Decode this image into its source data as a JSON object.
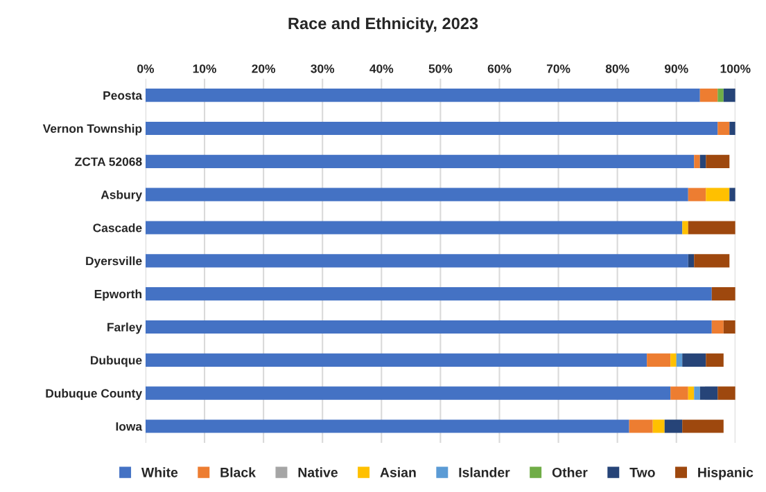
{
  "chart_data": {
    "type": "bar",
    "orientation": "horizontal",
    "stacked": true,
    "title": "Race and Ethnicity, 2023",
    "categories": [
      "Peosta",
      "Vernon Township",
      "ZCTA 52068",
      "Asbury",
      "Cascade",
      "Dyersville",
      "Epworth",
      "Farley",
      "Dubuque",
      "Dubuque County",
      "Iowa"
    ],
    "series": [
      {
        "name": "White",
        "color": "#4472c4",
        "values": [
          94,
          97,
          93,
          92,
          91,
          92,
          96,
          96,
          85,
          89,
          82
        ]
      },
      {
        "name": "Black",
        "color": "#ed7d31",
        "values": [
          3,
          2,
          1,
          3,
          0,
          0,
          0,
          2,
          4,
          3,
          4
        ]
      },
      {
        "name": "Native",
        "color": "#a5a5a5",
        "values": [
          0,
          0,
          0,
          0,
          0,
          0,
          0,
          0,
          0,
          0,
          0
        ]
      },
      {
        "name": "Asian",
        "color": "#ffc000",
        "values": [
          0,
          0,
          0,
          4,
          1,
          0,
          0,
          0,
          1,
          1,
          2
        ]
      },
      {
        "name": "Islander",
        "color": "#5b9bd5",
        "values": [
          0,
          0,
          0,
          0,
          0,
          0,
          0,
          0,
          1,
          1,
          0
        ]
      },
      {
        "name": "Other",
        "color": "#70ad47",
        "values": [
          1,
          0,
          0,
          0,
          0,
          0,
          0,
          0,
          0,
          0,
          0
        ]
      },
      {
        "name": "Two",
        "color": "#264478",
        "values": [
          2,
          1,
          1,
          1,
          0,
          1,
          0,
          0,
          4,
          3,
          3
        ]
      },
      {
        "name": "Hispanic",
        "color": "#9e480e",
        "values": [
          0,
          0,
          4,
          0,
          8,
          6,
          4,
          2,
          3,
          3,
          7
        ]
      }
    ],
    "xlim": [
      0,
      100
    ],
    "xticks": [
      {
        "value": 0,
        "label": "0%"
      },
      {
        "value": 10,
        "label": "10%"
      },
      {
        "value": 20,
        "label": "20%"
      },
      {
        "value": 30,
        "label": "30%"
      },
      {
        "value": 40,
        "label": "40%"
      },
      {
        "value": 50,
        "label": "50%"
      },
      {
        "value": 60,
        "label": "60%"
      },
      {
        "value": 70,
        "label": "70%"
      },
      {
        "value": 80,
        "label": "80%"
      },
      {
        "value": 90,
        "label": "90%"
      },
      {
        "value": 100,
        "label": "100%"
      }
    ],
    "grid": "x",
    "legend": "bottom"
  }
}
